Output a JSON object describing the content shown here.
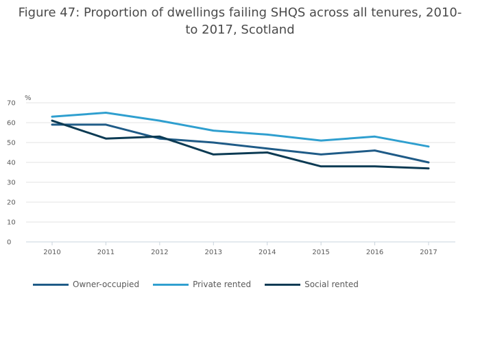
{
  "chart_data": {
    "type": "line",
    "title": "Figure 47: Proportion of dwellings failing SHQS across all tenures, 2010- to 2017, Scotland",
    "ylabel": "%",
    "xlabel": "",
    "x": [
      "2010",
      "2011",
      "2012",
      "2013",
      "2014",
      "2015",
      "2016",
      "2017"
    ],
    "yticks": [
      "0",
      "10",
      "20",
      "30",
      "40",
      "50",
      "60",
      "70"
    ],
    "ylim": [
      0,
      70
    ],
    "grid": true,
    "legend_position": "bottom-left",
    "series": [
      {
        "name": "Owner-occupied",
        "color": "#1f5b87",
        "values": [
          59,
          59,
          52,
          50,
          47,
          44,
          46,
          40
        ]
      },
      {
        "name": "Private rented",
        "color": "#2f9fcf",
        "values": [
          63,
          65,
          61,
          56,
          54,
          51,
          53,
          48
        ]
      },
      {
        "name": "Social rented",
        "color": "#0b3a53",
        "values": [
          61,
          52,
          53,
          44,
          45,
          38,
          38,
          37
        ]
      }
    ]
  }
}
